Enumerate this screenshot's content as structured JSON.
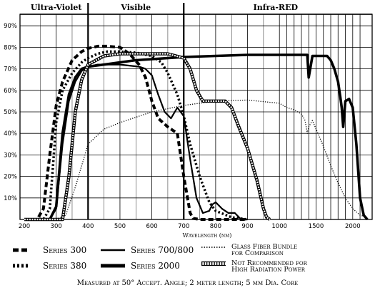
{
  "chart_data": {
    "type": "line",
    "xlabel": "Wavelength (nm)",
    "ylabel": "",
    "x_ticks": [
      200,
      300,
      400,
      500,
      600,
      700,
      800,
      900,
      1000,
      1500,
      2000
    ],
    "y_ticks": [
      10,
      20,
      30,
      40,
      50,
      60,
      70,
      80,
      90
    ],
    "y_tick_labels": [
      "10%",
      "20%",
      "30%",
      "40%",
      "50%",
      "60%",
      "70%",
      "80%",
      "90%"
    ],
    "ylim": [
      0,
      95
    ],
    "x_scale": "piecewise: linear 200–1000 nm, compressed linear 1000–2200 nm",
    "grid": true,
    "regions": [
      {
        "label": "Ultra-Violet",
        "from": 200,
        "to": 400
      },
      {
        "label": "Visible",
        "from": 400,
        "to": 700
      },
      {
        "label": "Infra-RED",
        "from": 700,
        "to": 2200
      }
    ],
    "series": [
      {
        "name": "Series 300",
        "style": "dashed-thick",
        "x": [
          200,
          240,
          260,
          280,
          300,
          320,
          350,
          380,
          400,
          430,
          460,
          500,
          530,
          560,
          580,
          600,
          620,
          650,
          680,
          700,
          720,
          730,
          750,
          780,
          800,
          820,
          840,
          860,
          900
        ],
        "y": [
          0,
          0,
          5,
          30,
          53,
          64,
          74,
          78,
          79.5,
          80.5,
          80.5,
          80,
          77,
          72,
          66,
          55,
          47,
          43,
          40,
          20,
          3,
          0.5,
          0,
          0,
          0,
          0,
          0,
          0,
          0
        ]
      },
      {
        "name": "Series 380",
        "style": "dotted-thick",
        "x": [
          200,
          260,
          280,
          300,
          320,
          350,
          380,
          400,
          430,
          460,
          500,
          550,
          600,
          630,
          650,
          680,
          700,
          720,
          750,
          780,
          800,
          850,
          900
        ],
        "y": [
          0,
          0,
          5,
          45,
          60,
          68,
          73,
          75,
          77,
          78,
          78,
          77.5,
          76,
          73,
          68,
          58,
          48,
          35,
          20,
          8,
          4,
          1,
          0
        ]
      },
      {
        "name": "Series 700/800",
        "style": "solid",
        "x": [
          200,
          280,
          300,
          320,
          340,
          360,
          380,
          400,
          430,
          460,
          500,
          530,
          560,
          580,
          600,
          620,
          640,
          660,
          680,
          700,
          710,
          720,
          740,
          760,
          780,
          790,
          800,
          820,
          840,
          860,
          880,
          900
        ],
        "y": [
          0,
          0,
          5,
          35,
          55,
          64,
          69,
          71,
          72,
          72,
          72,
          71.5,
          71,
          70,
          67,
          58,
          50,
          47,
          52,
          48,
          38,
          28,
          10,
          3,
          4,
          7,
          8,
          5,
          3,
          3,
          0,
          0
        ]
      },
      {
        "name": "Series 2000",
        "style": "solid-thick",
        "x": [
          200,
          280,
          300,
          320,
          340,
          360,
          380,
          400,
          450,
          500,
          550,
          600,
          700,
          800,
          900,
          1000,
          1100,
          1200,
          1300,
          1350,
          1380,
          1400,
          1450,
          1550,
          1650,
          1700,
          1750,
          1800,
          1830,
          1850,
          1870,
          1900,
          1950,
          2000,
          2050,
          2100,
          2150,
          2200
        ],
        "y": [
          0,
          0,
          6,
          40,
          58,
          66,
          70,
          71,
          72,
          73,
          74,
          74.5,
          75.5,
          76,
          76.5,
          76.5,
          76.5,
          76.5,
          76.5,
          76.5,
          76.5,
          66,
          76,
          76,
          76,
          74,
          70,
          64,
          57,
          52,
          43,
          55,
          56,
          52,
          35,
          10,
          2,
          0
        ]
      },
      {
        "name": "Glass Fiber Bundle for Comparison",
        "style": "dotted",
        "x": [
          200,
          300,
          330,
          360,
          400,
          450,
          500,
          600,
          700,
          800,
          900,
          1000,
          1100,
          1200,
          1300,
          1350,
          1380,
          1400,
          1450,
          1500,
          1600,
          1700,
          1800,
          1900,
          2000,
          2100,
          2200
        ],
        "y": [
          0,
          0,
          2,
          15,
          35,
          42,
          45,
          50,
          53,
          55,
          55.5,
          54,
          52,
          51,
          49,
          46,
          40,
          43,
          46,
          42,
          34,
          25,
          17,
          10,
          5,
          2,
          1
        ]
      },
      {
        "name": "Not Recommended for High Radiation Power",
        "style": "hatched",
        "x": [
          200,
          320,
          340,
          360,
          380,
          400,
          450,
          500,
          550,
          600,
          650,
          700,
          720,
          740,
          760,
          780,
          800,
          830,
          850,
          870,
          900,
          930,
          950,
          960,
          970
        ],
        "y": [
          0,
          0,
          20,
          50,
          65,
          72,
          76,
          77,
          77,
          77,
          77,
          75,
          70,
          60,
          55,
          55,
          55,
          55,
          52,
          44,
          33,
          18,
          5,
          1,
          0
        ]
      }
    ]
  },
  "legend": {
    "s300": "Series 300",
    "s380": "Series 380",
    "s700": "Series 700/800",
    "s2000": "Series 2000",
    "glass_line1": "Glass Fiber Bundle",
    "glass_line2": "for Comparison",
    "nr_line1": "Not Recommended for",
    "nr_line2": "High Radiation Power"
  },
  "footer": "Measured at 50° Accept. Angle; 2 meter length; 5 mm Dia. Core"
}
